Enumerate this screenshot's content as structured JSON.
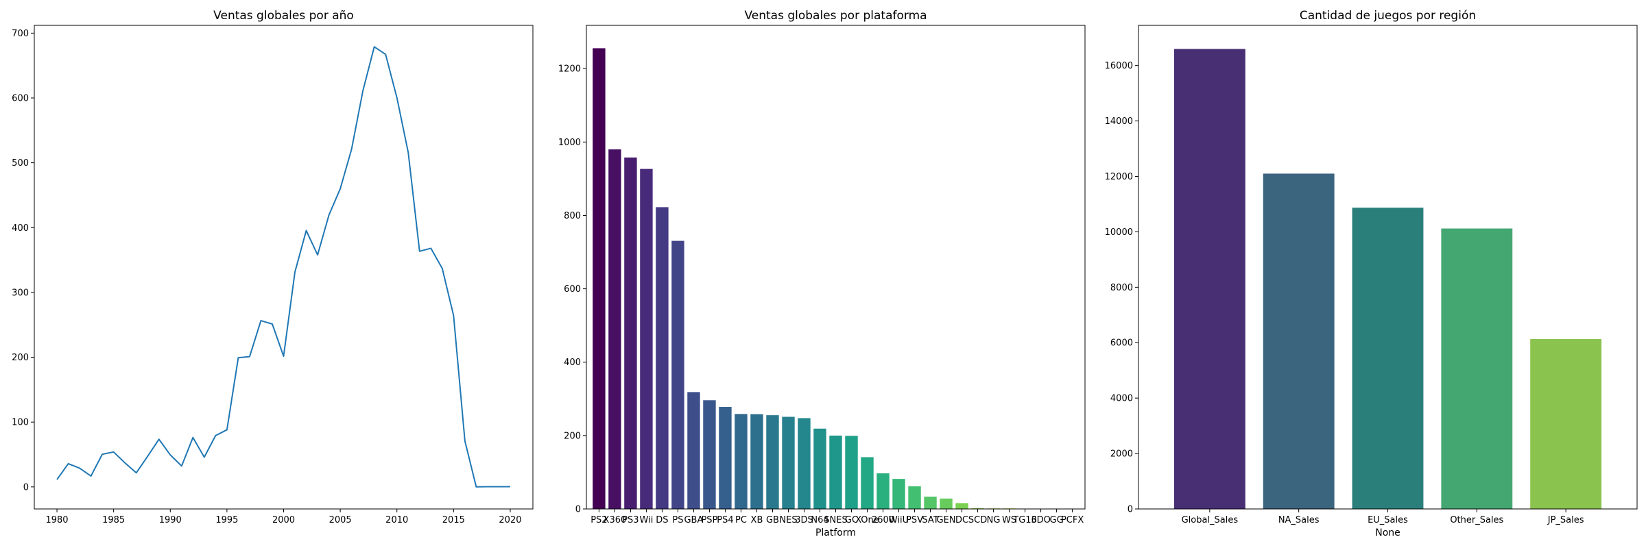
{
  "chart_data": [
    {
      "type": "line",
      "title": "Ventas globales por año",
      "xlabel": "",
      "ylabel": "",
      "xlim": [
        1978.0,
        2022.0
      ],
      "ylim": [
        -34,
        712
      ],
      "xticks": [
        1980,
        1985,
        1990,
        1995,
        2000,
        2005,
        2010,
        2015,
        2020
      ],
      "yticks": [
        0,
        100,
        200,
        300,
        400,
        500,
        600,
        700
      ],
      "grid": false,
      "color": "#1f77b4",
      "x": [
        1980,
        1981,
        1982,
        1983,
        1984,
        1985,
        1986,
        1987,
        1988,
        1989,
        1990,
        1991,
        1992,
        1993,
        1994,
        1995,
        1996,
        1997,
        1998,
        1999,
        2000,
        2001,
        2002,
        2003,
        2004,
        2005,
        2006,
        2007,
        2008,
        2009,
        2010,
        2011,
        2012,
        2013,
        2014,
        2015,
        2016,
        2017,
        2018,
        2019,
        2020
      ],
      "y": [
        11.4,
        35.8,
        28.9,
        16.8,
        50.4,
        53.9,
        37.1,
        21.7,
        47.2,
        73.5,
        49.4,
        32.2,
        76.2,
        45.9,
        79.2,
        88.1,
        199.2,
        201.0,
        256.5,
        251.3,
        201.6,
        331.5,
        395.5,
        357.9,
        419.3,
        459.9,
        521.0,
        611.1,
        678.9,
        667.3,
        600.3,
        515.8,
        363.5,
        368.1,
        337.0,
        264.4,
        70.9,
        0.1,
        0.4,
        0.4,
        0.3
      ]
    },
    {
      "type": "bar",
      "title": "Ventas globales por plataforma",
      "xlabel": "Platform",
      "ylabel": "",
      "ylim": [
        0,
        1318
      ],
      "yticks": [
        0,
        200,
        400,
        600,
        800,
        1000,
        1200
      ],
      "grid": false,
      "categories": [
        "PS2",
        "X360",
        "PS3",
        "Wii",
        "DS",
        "PS",
        "GBA",
        "PSP",
        "PS4",
        "PC",
        "XB",
        "GB",
        "NES",
        "3DS",
        "N64",
        "SNES",
        "GC",
        "XOne",
        "2600",
        "WiiU",
        "PSV",
        "SAT",
        "GEN",
        "DC",
        "SCD",
        "NG",
        "WS",
        "TG16",
        "3DO",
        "GG",
        "PCFX"
      ],
      "values": [
        1255.6,
        979.9,
        957.8,
        926.7,
        822.5,
        730.7,
        318.5,
        296.3,
        278.1,
        258.8,
        258.3,
        255.5,
        251.1,
        247.5,
        218.9,
        200.0,
        199.4,
        141.1,
        97.1,
        81.9,
        61.9,
        33.6,
        28.4,
        16.0,
        1.9,
        1.4,
        1.4,
        0.2,
        0.1,
        0.0,
        0.0
      ],
      "colors": [
        "#440154",
        "#471063",
        "#481d6f",
        "#472a7a",
        "#443983",
        "#414487",
        "#3d4e8a",
        "#39568c",
        "#355f8d",
        "#31688e",
        "#2d708e",
        "#2a788e",
        "#27808e",
        "#24878e",
        "#21918c",
        "#1f988b",
        "#1fa088",
        "#22a884",
        "#2ab07f",
        "#35b779",
        "#43bf71",
        "#54c568",
        "#67cc5c",
        "#7ad151",
        "#90d743",
        "#a5db36",
        "#bddf26",
        "#d2e21b",
        "#e8e419",
        "#f0e51c",
        "#fde725"
      ]
    },
    {
      "type": "bar",
      "title": "Cantidad de juegos por región",
      "xlabel": "None",
      "ylabel": "",
      "ylim": [
        0,
        17450
      ],
      "yticks": [
        0,
        2000,
        4000,
        6000,
        8000,
        10000,
        12000,
        14000,
        16000
      ],
      "grid": false,
      "categories": [
        "Global_Sales",
        "NA_Sales",
        "EU_Sales",
        "Other_Sales",
        "JP_Sales"
      ],
      "values": [
        16598,
        12100,
        10870,
        10120,
        6130
      ],
      "colors": [
        "#482f74",
        "#3b647f",
        "#2b7f7b",
        "#44a772",
        "#8bc34f"
      ]
    }
  ]
}
